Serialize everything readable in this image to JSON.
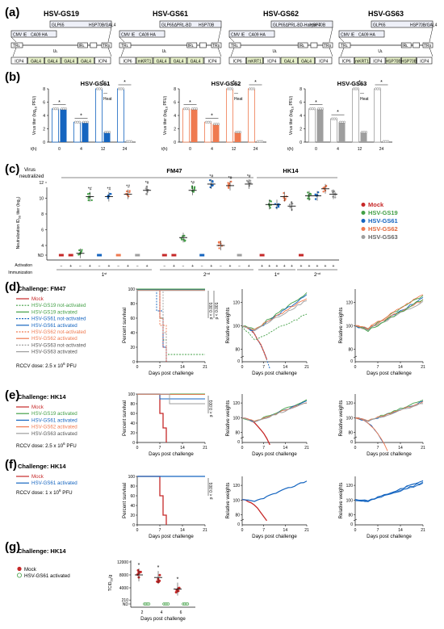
{
  "panels": {
    "a": "(a)",
    "b": "(b)",
    "c": "(c)",
    "d": "(d)",
    "e": "(e)",
    "f": "(f)",
    "g": "(g)"
  },
  "constructs": [
    {
      "title": "HSV-GS19",
      "top": [
        "CMV IE",
        "CA09 HA",
        "GLP65",
        "HSP70B/GAL4"
      ],
      "bottom": [
        "ICP4",
        "GAL4",
        "GAL4",
        "GAL4",
        "GAL4",
        "ICP4"
      ]
    },
    {
      "title": "HSV-GS61",
      "top": [
        "CMV IE",
        "CA09 HA",
        "GLP65ΔPRL-BD",
        "HSP70B"
      ],
      "bottom": [
        "ICP6",
        "mKRT1",
        "GAL4",
        "GAL4",
        "GAL4",
        "ICP4"
      ]
    },
    {
      "title": "HSV-GS62",
      "top": [
        "CMV IE",
        "CA09 HA",
        "GLP65ΔPRL-BD-Hairpin 4",
        "HSP70B"
      ],
      "bottom": [
        "ICP6",
        "mKRT1",
        "ICP4",
        "GAL4",
        "GAL4",
        "ICP4"
      ]
    },
    {
      "title": "HSV-GS63",
      "top": [
        "CMV IE",
        "CA09 HA",
        "GLP65",
        "HSP70B/GAL4"
      ],
      "bottom": [
        "ICP6",
        "mKRT1",
        "ICP4",
        "HSP70B",
        "HSP70B",
        "ICP4"
      ]
    }
  ],
  "genome_labels": {
    "trl": "TRʟ",
    "ul": "Uʟ",
    "irl": "IRʟ",
    "irs": "IRs",
    "us": "Us",
    "trs": "TRs"
  },
  "titer": {
    "ylabel": "Virus titer (log",
    "ylabel_sub": "10",
    "ylabel_end": " PFU)",
    "th_label": "t(h)",
    "x_ticks": [
      "0",
      "4",
      "12",
      "24"
    ],
    "y_ticks": [
      "0",
      "2",
      "4",
      "6",
      "8"
    ],
    "legend_dash": "—",
    "legend_heat": "Heat",
    "star": "*",
    "charts": [
      {
        "title": "HSV-GS61",
        "color": "#1565c0",
        "values": [
          5,
          3,
          8,
          8
        ],
        "heat": [
          5,
          3,
          1.5,
          0.1
        ]
      },
      {
        "title": "HSV-GS62",
        "color": "#ef7a50",
        "values": [
          5,
          3,
          8,
          8
        ],
        "heat": [
          5,
          2.7,
          1.5,
          0.1
        ]
      },
      {
        "title": "HSV-GS63",
        "color": "#9e9e9e",
        "values": [
          5,
          3.5,
          8,
          8
        ],
        "heat": [
          5,
          3,
          1.5,
          0.1
        ]
      }
    ]
  },
  "neutral": {
    "header": "Virus",
    "header2": "neutralized",
    "groups": [
      "FM47",
      "HK14"
    ],
    "ylabel": "Neutralization ID",
    "ylabel_sub": "50",
    "ylabel_end": " titer (log",
    "ylabel_sub2": "2",
    "ylabel_tail": ")",
    "y_ticks": [
      "ND",
      "4",
      "6",
      "8",
      "10",
      "12"
    ],
    "activation_label": "Activation",
    "immunization_label": "Immunization",
    "imm": [
      "1",
      "2",
      "1",
      "2"
    ],
    "imm_sup": [
      "st",
      "nd",
      "st",
      "nd"
    ],
    "minus": "−",
    "plus": "+",
    "mark": "*#",
    "legend": [
      {
        "name": "Mock",
        "color": "#c62828"
      },
      {
        "name": "HSV-GS19",
        "color": "#43a047"
      },
      {
        "name": "HSV-GS61",
        "color": "#1565c0"
      },
      {
        "name": "HSV-GS62",
        "color": "#ef7a50"
      },
      {
        "name": "HSV-GS63",
        "color": "#9e9e9e"
      }
    ]
  },
  "challenge_d": {
    "title": "Challenge: FM47",
    "legend": [
      {
        "name": "Mock",
        "color": "#c62828",
        "dash": false
      },
      {
        "name": "HSV-GS19 not-activated",
        "color": "#43a047",
        "dash": true
      },
      {
        "name": "HSV-GS19 activated",
        "color": "#43a047",
        "dash": false
      },
      {
        "name": "HSV-GS61 not-activated",
        "color": "#1565c0",
        "dash": true
      },
      {
        "name": "HSV-GS61 activated",
        "color": "#1565c0",
        "dash": false
      },
      {
        "name": "HSV-GS62 not-activated",
        "color": "#ef7a50",
        "dash": true
      },
      {
        "name": "HSV-GS62 activated",
        "color": "#ef7a50",
        "dash": false
      },
      {
        "name": "HSV-GS63 not-activated",
        "color": "#9e9e9e",
        "dash": true
      },
      {
        "name": "HSV-GS63 activated",
        "color": "#9e9e9e",
        "dash": false
      }
    ],
    "dose_prefix": "RCCV dose: 2.5 x 10",
    "dose_sup": "6",
    "dose_suffix": " PFU",
    "pvals": [
      "p < 0.001",
      "p < 0.001"
    ]
  },
  "challenge_e": {
    "title": "Challenge: HK14",
    "legend": [
      {
        "name": "Mock",
        "color": "#c62828",
        "dash": false
      },
      {
        "name": "HSV-GS19 activated",
        "color": "#43a047",
        "dash": false
      },
      {
        "name": "HSV-GS61 activated",
        "color": "#1565c0",
        "dash": false
      },
      {
        "name": "HSV-GS62 activated",
        "color": "#ef7a50",
        "dash": false
      },
      {
        "name": "HSV-GS63 activated",
        "color": "#9e9e9e",
        "dash": false
      }
    ],
    "dose_prefix": "RCCV dose: 2.5 x 10",
    "dose_sup": "6",
    "dose_suffix": " PFU",
    "pvals": [
      "p < 0.001"
    ]
  },
  "challenge_f": {
    "title": "Challenge: HK14",
    "legend": [
      {
        "name": "Mock",
        "color": "#c62828",
        "dash": false
      },
      {
        "name": "HSV-GS61 activated",
        "color": "#1565c0",
        "dash": false
      }
    ],
    "dose_prefix": "RCCV dose: 1 x 10",
    "dose_sup": "6",
    "dose_suffix": " PFU",
    "pvals": [
      "p < 0.001"
    ]
  },
  "surv_axis": {
    "ylabel": "Percent survival",
    "xlabel": "Days post challenge",
    "y_ticks": [
      "0",
      "20",
      "40",
      "60",
      "80",
      "100"
    ],
    "x_ticks": [
      "0",
      "7",
      "14",
      "21"
    ]
  },
  "weight_axis": {
    "ylabel": "Relative weights",
    "xlabel": "Days post challenge",
    "y_ticks": [
      "80",
      "100",
      "120"
    ],
    "y_zero": "0",
    "x_ticks": [
      "0",
      "7",
      "14",
      "21"
    ]
  },
  "panel_g": {
    "title": "Challenge: HK14",
    "legend": [
      {
        "name": "Mock",
        "color": "#c62828"
      },
      {
        "name": "HSV-GS61 activated",
        "color": "#43a047"
      }
    ],
    "ylabel": "TCID",
    "ylabel_sub": "50",
    "ylabel_end": "/g",
    "y_ticks": [
      "ND",
      "210",
      "4000",
      "8000",
      "12000"
    ],
    "x_ticks": [
      "2",
      "4",
      "6"
    ],
    "xlabel": "Days post challenge",
    "star": "*"
  }
}
